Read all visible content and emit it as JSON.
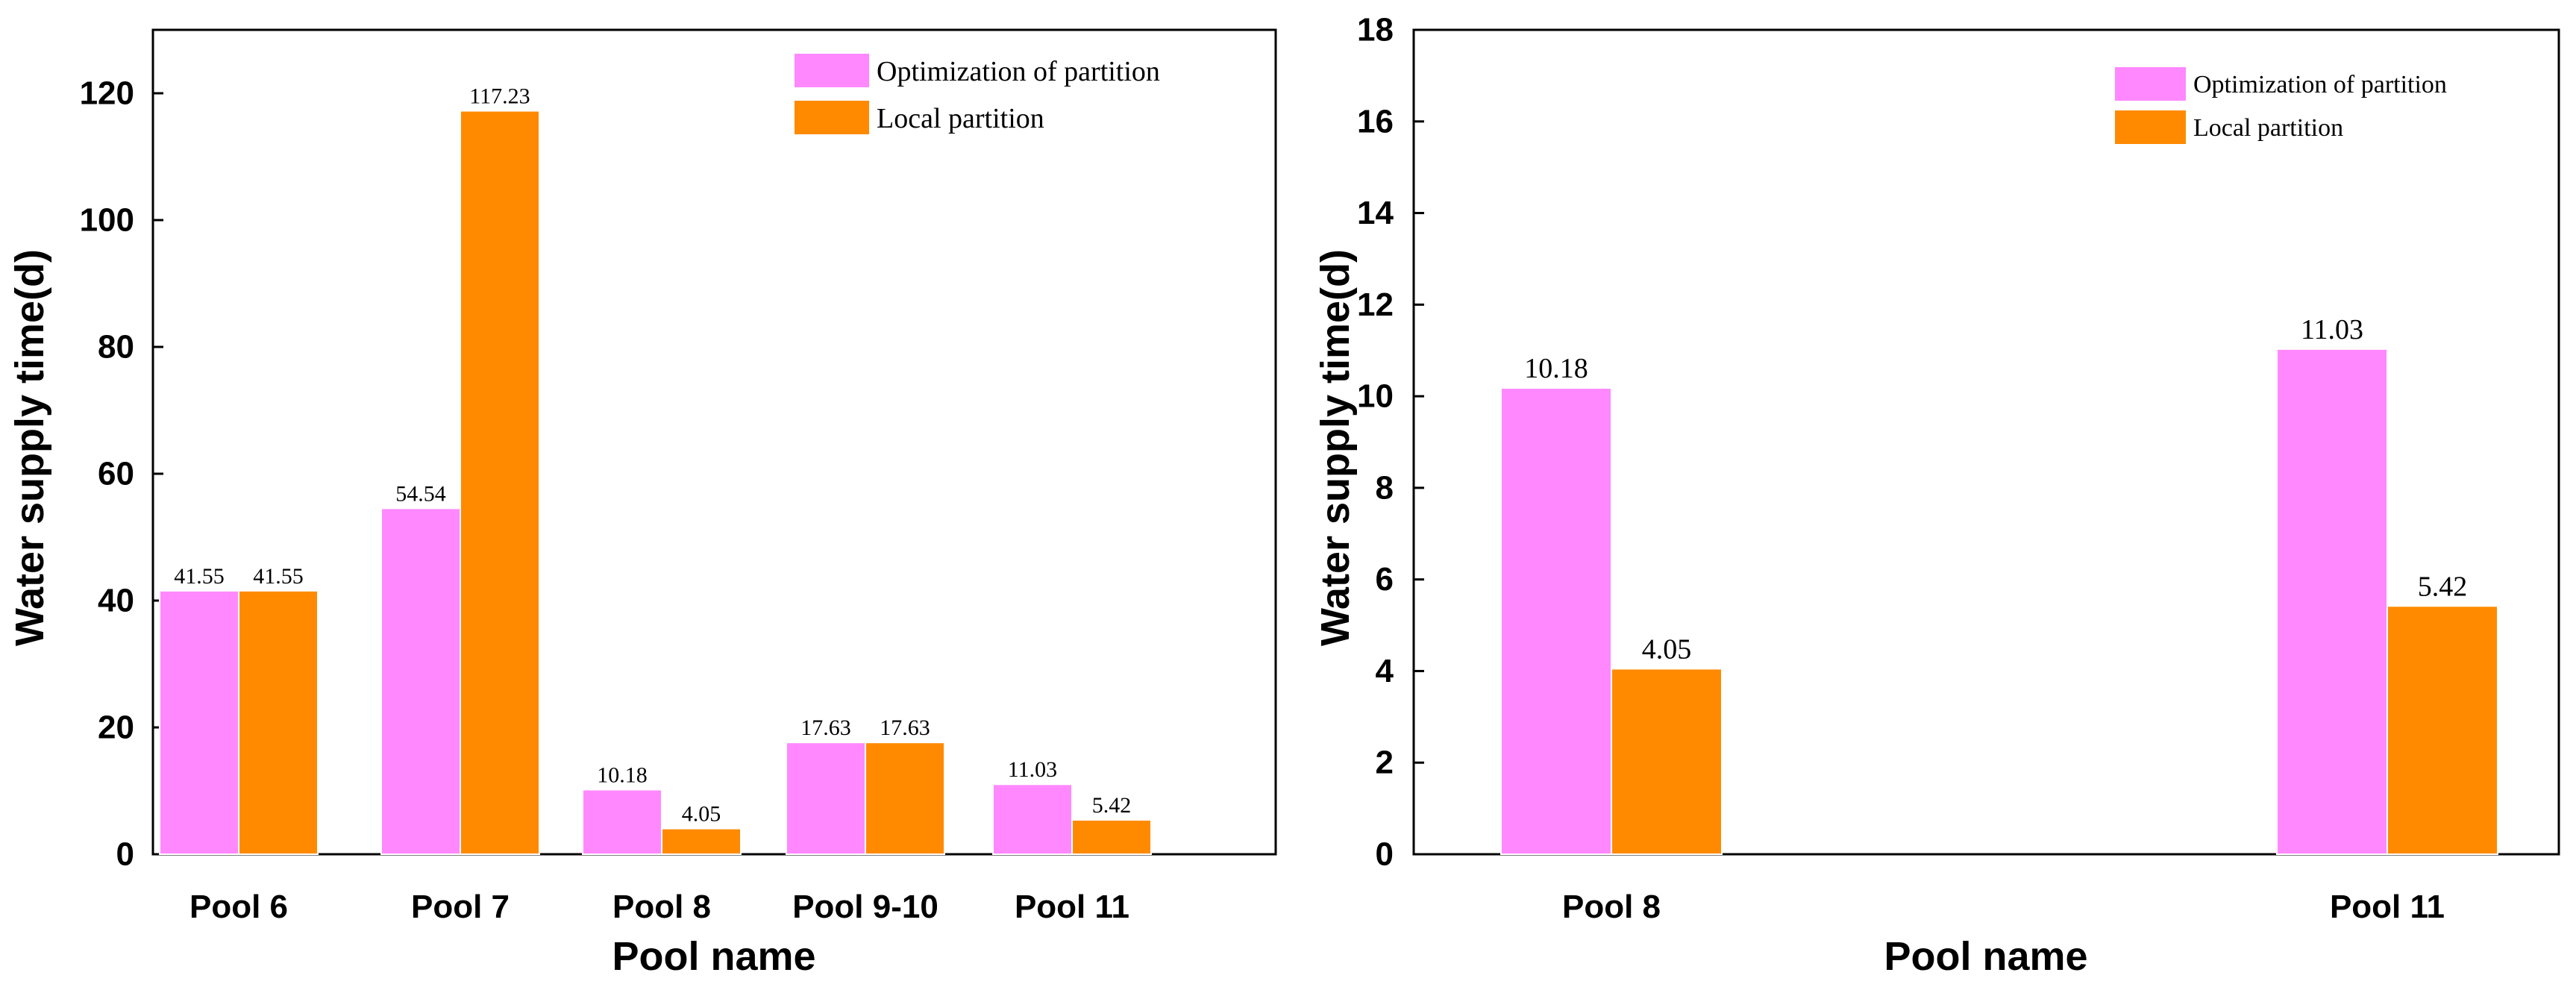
{
  "colors": {
    "series1": "#ff88ff",
    "series2": "#ff8a00"
  },
  "chart_data": [
    {
      "type": "bar",
      "title": "",
      "xlabel": "Pool name",
      "ylabel": "Water supply time(d)",
      "categories": [
        "Pool 6",
        "Pool 7",
        "Pool 8",
        "Pool 9-10",
        "Pool 11"
      ],
      "series": [
        {
          "name": "Optimization of partition",
          "values": [
            41.55,
            54.54,
            10.18,
            17.63,
            11.03
          ],
          "labels": [
            "41.55",
            "54.54",
            "10.18",
            "17.63",
            "11.03"
          ]
        },
        {
          "name": "Local partition",
          "values": [
            41.55,
            117.23,
            4.05,
            17.63,
            5.42
          ],
          "labels": [
            "41.55",
            "117.23",
            "4.05",
            "17.63",
            "5.42"
          ]
        }
      ],
      "ylim": [
        0,
        130
      ],
      "yticks": [
        0,
        20,
        40,
        60,
        80,
        100,
        120
      ],
      "ytick_labels": [
        "0",
        "20",
        "40",
        "60",
        "80",
        "100",
        "120"
      ],
      "legend_position": "top-right",
      "grid": false
    },
    {
      "type": "bar",
      "title": "",
      "xlabel": "Pool name",
      "ylabel": "Water supply time(d)",
      "categories": [
        "Pool 8",
        "Pool 11"
      ],
      "series": [
        {
          "name": "Optimization of partition",
          "values": [
            10.18,
            11.03
          ],
          "labels": [
            "10.18",
            "11.03"
          ]
        },
        {
          "name": "Local partition",
          "values": [
            4.05,
            5.42
          ],
          "labels": [
            "4.05",
            "5.42"
          ]
        }
      ],
      "ylim": [
        0,
        18
      ],
      "yticks": [
        0,
        2,
        4,
        6,
        8,
        10,
        12,
        14,
        16,
        18
      ],
      "ytick_labels": [
        "0",
        "2",
        "4",
        "6",
        "8",
        "10",
        "12",
        "14",
        "16",
        "18"
      ],
      "legend_position": "top-right",
      "grid": false
    }
  ]
}
